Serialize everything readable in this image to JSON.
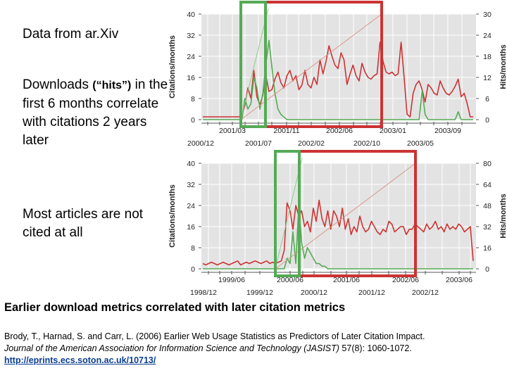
{
  "slide": {
    "bullets": [
      {
        "text": "Data from ar.Xiv"
      },
      {
        "lead": " Downloads ",
        "emph": "(“hits”)",
        "rest": " in the first 6 months correlate with citations 2 years later"
      },
      {
        "text": " Most articles are not cited at all"
      }
    ],
    "caption": "Earlier download metrics correlated with later citation metrics",
    "reference": {
      "line1": "Brody, T., Harnad, S. and Carr, L. (2006) Earlier Web Usage Statistics as Predictors of Later Citation Impact.",
      "journal": "Journal of the American Association for Information Science and Technology (JASIST)",
      "details": " 57(8): 1060-1072.",
      "url": "http://eprints.ecs.soton.ac.uk/10713/"
    }
  },
  "chart_data": [
    {
      "type": "line",
      "ylabel": "Citations/months",
      "y2label": "Hits/months",
      "ylim": [
        0,
        40
      ],
      "y2lim": [
        0,
        30
      ],
      "yticks": [
        0,
        8,
        16,
        24,
        32,
        40
      ],
      "y2ticks": [
        0,
        6,
        12,
        18,
        24,
        30
      ],
      "x_upper_labels": [
        "2001/03",
        "2001/11",
        "2002/06",
        "2003/01",
        "2003/09"
      ],
      "x_lower_labels": [
        "2000/12",
        "2001/07",
        "2002/02",
        "2002/10",
        "2003/05"
      ],
      "series": [
        {
          "color": "#cc3333",
          "axis": "right",
          "values": [
            0.8,
            0.8,
            0.8,
            0.8,
            0.8,
            0.8,
            0.8,
            0.8,
            0.8,
            0.8,
            0.8,
            0.8,
            0.8,
            1.2,
            4.0,
            9.0,
            6.0,
            14.0,
            6.5,
            4.2,
            7.0,
            12.5,
            8.0,
            8.5,
            11.5,
            13.5,
            10.5,
            9.0,
            12.5,
            14.0,
            11.0,
            12.5,
            8.5,
            9.8,
            14.0,
            10.0,
            9.0,
            12.0,
            10.0,
            17.0,
            13.0,
            16.5,
            21.0,
            18.0,
            15.5,
            14.5,
            19.0,
            17.0,
            10.0,
            13.0,
            15.5,
            12.5,
            11.0,
            16.0,
            13.5,
            12.0,
            11.5,
            12.5,
            13.0,
            22.0,
            16.5,
            13.5,
            13.0,
            13.5,
            12.5,
            13.0,
            22.0,
            12.0,
            1.5,
            0.8,
            7.5,
            10.0,
            11.0,
            8.5,
            5.0,
            10.0,
            9.0,
            7.5,
            7.0,
            11.0,
            9.0,
            7.5,
            7.0,
            8.0,
            9.5,
            11.5,
            6.5,
            7.5,
            4.5,
            0.8,
            0.8
          ]
        },
        {
          "color": "#55aa55",
          "axis": "left",
          "values": [
            0,
            0,
            0,
            0,
            0,
            0,
            0,
            0,
            0,
            0,
            0,
            0,
            0,
            0,
            8,
            4,
            6,
            16,
            12,
            4,
            10,
            21,
            30,
            20,
            10,
            4,
            2,
            1,
            0,
            0,
            0,
            0,
            0,
            0,
            0,
            0,
            0,
            0,
            0,
            0,
            0,
            0,
            0,
            0,
            0,
            0,
            0,
            0,
            0,
            0,
            0,
            0,
            0,
            0,
            0,
            0,
            0,
            0,
            0,
            0,
            0,
            0,
            0,
            0,
            0,
            0,
            0,
            0,
            0,
            0,
            0,
            0,
            0,
            11,
            2,
            0,
            0,
            0,
            0,
            0,
            0,
            0,
            0,
            0,
            0,
            3,
            0,
            0,
            0,
            0,
            0
          ]
        },
        {
          "color": "#d89888",
          "axis": "left",
          "values": [
            0,
            40
          ]
        },
        {
          "color": "#8ccc8c",
          "axis": "left",
          "values": [
            0,
            42
          ]
        }
      ],
      "highlight_boxes": [
        {
          "color": "#55aa55"
        },
        {
          "color": "#cc3333"
        }
      ]
    },
    {
      "type": "line",
      "ylabel": "Citations/months",
      "y2label": "Hits/months",
      "ylim": [
        0,
        40
      ],
      "y2lim": [
        0,
        80
      ],
      "yticks": [
        0,
        8,
        16,
        24,
        32,
        40
      ],
      "y2ticks": [
        0,
        16,
        32,
        48,
        64,
        80
      ],
      "x_upper_labels": [
        "1999/06",
        "2000/06",
        "2001/06",
        "2002/06",
        "2003/06"
      ],
      "x_lower_labels": [
        "1998/12",
        "1999/12",
        "2000/12",
        "2001/12",
        "2002/12"
      ],
      "series": [
        {
          "color": "#cc3333",
          "axis": "right",
          "values": [
            4,
            3,
            4,
            5,
            4,
            3,
            4,
            5,
            4,
            3,
            4,
            5,
            6,
            3,
            4,
            5,
            4,
            5,
            6,
            5,
            4,
            5,
            6,
            4,
            5,
            4,
            5,
            6,
            14,
            50,
            44,
            30,
            48,
            40,
            44,
            32,
            36,
            28,
            46,
            36,
            52,
            38,
            32,
            44,
            30,
            44,
            40,
            32,
            46,
            30,
            38,
            26,
            32,
            28,
            40,
            32,
            28,
            30,
            36,
            32,
            28,
            26,
            30,
            28,
            36,
            34,
            28,
            30,
            32,
            32,
            26,
            30,
            30,
            34,
            32,
            30,
            28,
            34,
            30,
            32,
            36,
            30,
            32,
            28,
            34,
            30,
            32,
            30,
            34,
            32,
            28,
            30,
            32,
            6
          ]
        },
        {
          "color": "#55aa55",
          "axis": "left",
          "values": [
            0,
            0,
            0,
            0,
            0,
            0,
            0,
            0,
            0,
            0,
            0,
            0,
            0,
            0,
            0,
            0,
            0,
            0,
            0,
            0,
            0,
            0,
            0,
            0,
            0,
            0,
            0,
            0,
            0,
            4,
            2,
            14,
            2,
            24,
            10,
            4,
            8,
            6,
            4,
            2,
            2,
            1,
            1,
            0,
            0,
            0,
            0,
            0,
            0,
            0,
            0,
            0,
            0,
            0,
            0,
            0,
            0,
            0,
            0,
            0,
            0,
            0,
            0,
            0,
            0,
            0,
            0,
            0,
            0,
            0,
            0,
            0,
            0,
            0,
            0,
            0,
            0,
            0,
            0,
            0,
            0,
            0,
            0,
            0,
            0,
            0,
            0,
            0,
            0,
            0,
            0,
            0,
            0,
            0
          ]
        },
        {
          "color": "#d89888",
          "axis": "left",
          "values": [
            0,
            40
          ]
        },
        {
          "color": "#8ccc8c",
          "axis": "left",
          "values": [
            0,
            42
          ]
        }
      ],
      "highlight_boxes": [
        {
          "color": "#55aa55"
        },
        {
          "color": "#cc3333"
        }
      ]
    }
  ]
}
